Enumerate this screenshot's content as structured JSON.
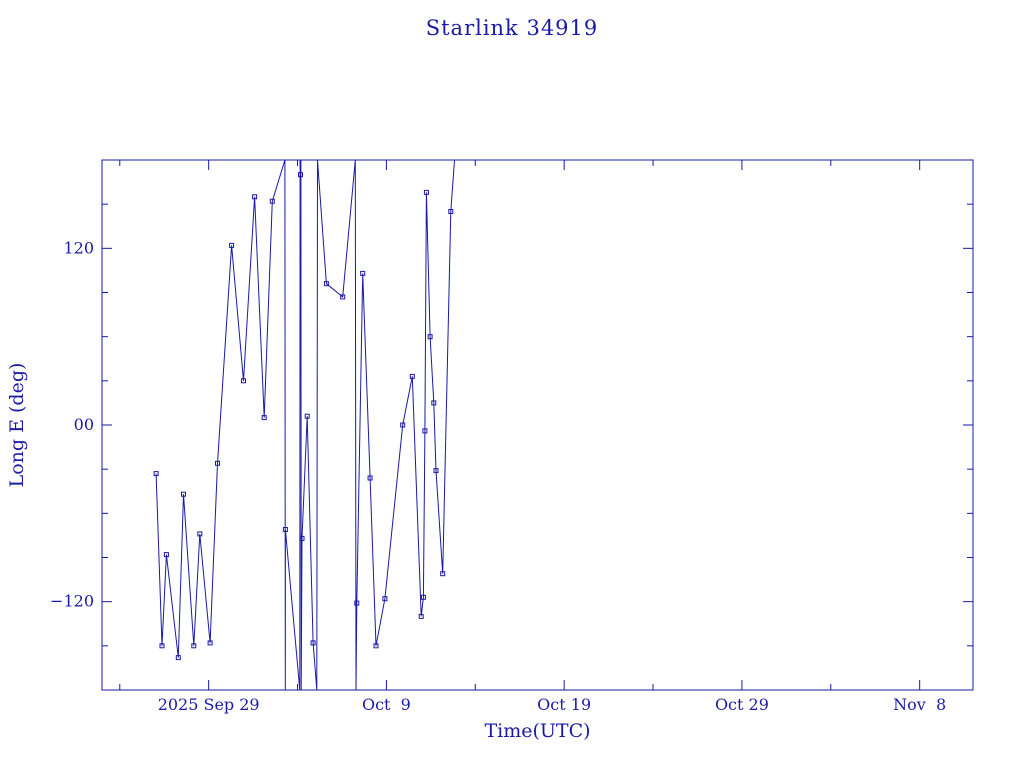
{
  "chart_data": {
    "type": "line",
    "title": "Starlink 34919",
    "xlabel": "Time(UTC)",
    "ylabel": "Long E (deg)",
    "color": "#1a1aa6",
    "marker": "square",
    "grid": false,
    "xlim": [
      "2025-09-23",
      "2025-11-11"
    ],
    "ylim": [
      -180,
      180
    ],
    "x_ticks": [
      {
        "value": "2025-09-29",
        "label": "2025 Sep 29"
      },
      {
        "value": "2025-10-09",
        "label": "Oct  9"
      },
      {
        "value": "2025-10-19",
        "label": "Oct 19"
      },
      {
        "value": "2025-10-29",
        "label": "Oct 29"
      },
      {
        "value": "2025-11-08",
        "label": "Nov  8"
      }
    ],
    "y_ticks": [
      {
        "value": 120,
        "label": "120"
      },
      {
        "value": 0,
        "label": "00"
      },
      {
        "value": -120,
        "label": "−120"
      }
    ],
    "series": [
      {
        "points": [
          [
            "2025-09-26T01:00",
            -33
          ],
          [
            "2025-09-26T09:00",
            -150
          ],
          [
            "2025-09-26T15:00",
            -88
          ],
          [
            "2025-09-27T07:00",
            -158
          ],
          [
            "2025-09-27T14:00",
            -47
          ],
          [
            "2025-09-28T04:00",
            -150
          ],
          [
            "2025-09-28T12:00",
            -74
          ],
          [
            "2025-09-29T02:00",
            -148
          ],
          [
            "2025-09-29T12:00",
            -26
          ],
          [
            "2025-09-30T07:00",
            122
          ],
          [
            "2025-09-30T23:00",
            30
          ],
          [
            "2025-10-01T14:00",
            155
          ],
          [
            "2025-10-02T03:00",
            5
          ],
          [
            "2025-10-02T14:00",
            152
          ],
          [
            "2025-10-03T07:00",
            180
          ],
          [
            "2025-10-03T07:30",
            -180
          ],
          [
            "2025-10-03T07:40",
            -71
          ],
          [
            "2025-10-04T03:00",
            -180
          ],
          [
            "2025-10-04T03:30",
            180
          ],
          [
            "2025-10-04T04:00",
            170
          ],
          [
            "2025-10-04T04:30",
            180
          ],
          [
            "2025-10-04T05:00",
            -180
          ],
          [
            "2025-10-04T06:00",
            -77
          ],
          [
            "2025-10-04T13:00",
            6
          ],
          [
            "2025-10-04T21:00",
            -148
          ],
          [
            "2025-10-05T02:00",
            -180
          ],
          [
            "2025-10-05T03:00",
            180
          ],
          [
            "2025-10-05T15:00",
            96
          ],
          [
            "2025-10-06T13:00",
            87
          ],
          [
            "2025-10-07T06:00",
            180
          ],
          [
            "2025-10-07T07:00",
            -180
          ],
          [
            "2025-10-07T08:00",
            -121
          ],
          [
            "2025-10-07T16:00",
            103
          ],
          [
            "2025-10-08T02:00",
            -36
          ],
          [
            "2025-10-08T10:00",
            -150
          ],
          [
            "2025-10-08T22:00",
            -118
          ],
          [
            "2025-10-09T22:00",
            0
          ],
          [
            "2025-10-10T11:00",
            33
          ],
          [
            "2025-10-10T23:00",
            -130
          ],
          [
            "2025-10-11T02:00",
            -117
          ],
          [
            "2025-10-11T04:00",
            -4
          ],
          [
            "2025-10-11T06:00",
            158
          ],
          [
            "2025-10-11T11:00",
            60
          ],
          [
            "2025-10-11T16:00",
            15
          ],
          [
            "2025-10-11T19:00",
            -31
          ],
          [
            "2025-10-12T04:00",
            -101
          ],
          [
            "2025-10-12T15:00",
            145
          ],
          [
            "2025-10-12T20:00",
            180
          ]
        ]
      }
    ]
  }
}
